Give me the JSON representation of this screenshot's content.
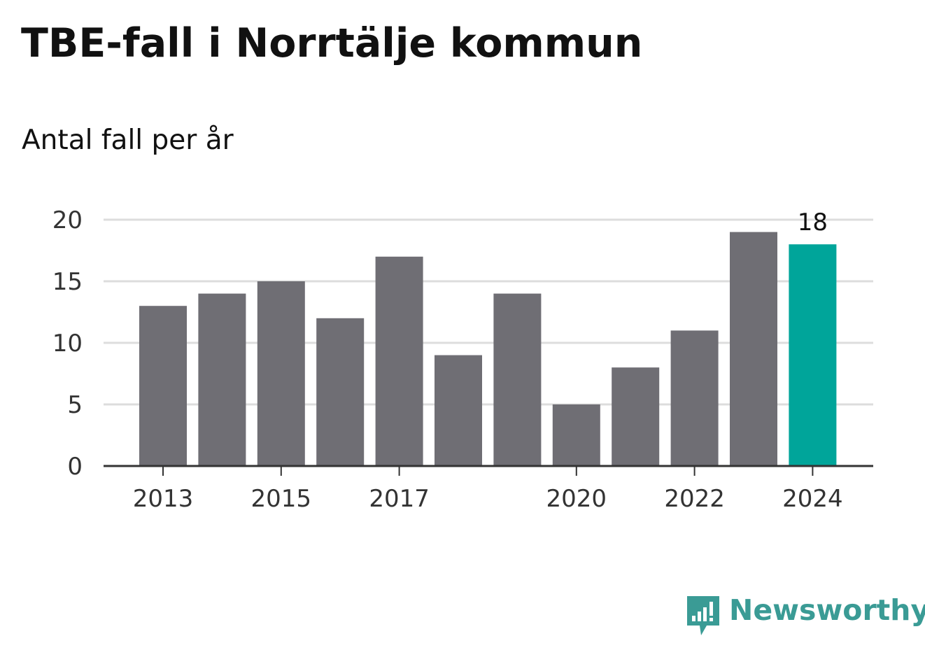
{
  "chart_data": {
    "type": "bar",
    "title": "TBE-fall i Norrtälje kommun",
    "subtitle": "Antal fall per år",
    "categories": [
      "2013",
      "2014",
      "2015",
      "2016",
      "2017",
      "2018",
      "2019",
      "2020",
      "2021",
      "2022",
      "2023",
      "2024"
    ],
    "values": [
      13,
      14,
      15,
      12,
      17,
      9,
      14,
      5,
      8,
      11,
      19,
      18
    ],
    "x_tick_labels": [
      "2013",
      "2015",
      "2017",
      "2020",
      "2022",
      "2024"
    ],
    "y_ticks": [
      0,
      5,
      10,
      15,
      20
    ],
    "ylim": [
      0,
      20
    ],
    "grid": true,
    "highlight": {
      "category": "2024",
      "label": "18"
    },
    "colors": {
      "bar": "#6f6e74",
      "highlight": "#00a59a",
      "grid": "#dddddd",
      "axis": "#333333",
      "text": "#111111"
    }
  },
  "brand": {
    "name": "Newsworthy",
    "color": "#3a9b95",
    "icon": "newsworthy-logo-icon"
  }
}
